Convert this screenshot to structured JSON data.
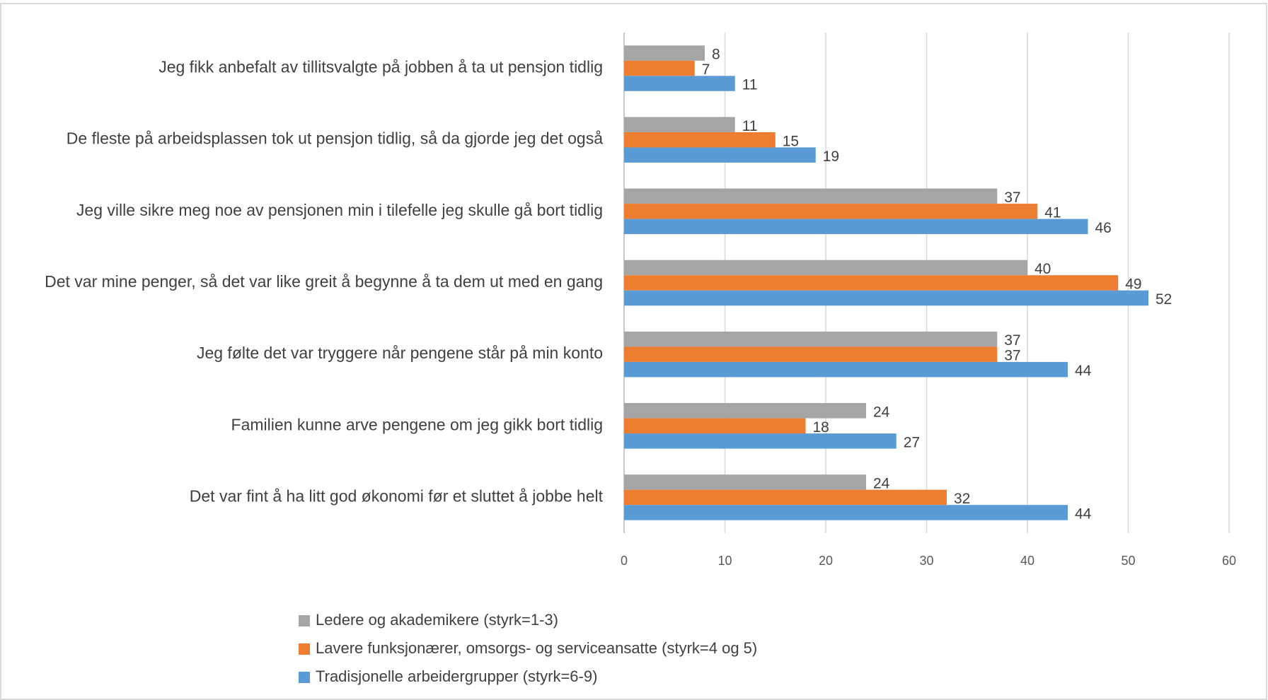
{
  "chart_data": {
    "type": "bar",
    "orientation": "horizontal",
    "categories": [
      "Jeg fikk anbefalt av tillitsvalgte på jobben å ta ut pensjon tidlig",
      "De fleste på arbeidsplassen tok ut pensjon tidlig, så da gjorde jeg det også",
      "Jeg ville sikre meg noe av pensjonen min i tilefelle jeg skulle gå bort tidlig",
      "Det var mine penger, så det var like greit å begynne å ta dem ut med en gang",
      "Jeg følte det var tryggere når pengene står på min konto",
      "Familien kunne arve pengene om jeg gikk bort tidlig",
      "Det var fint å ha litt god økonomi før et sluttet å jobbe helt"
    ],
    "series": [
      {
        "name": "Ledere og akademikere (styrk=1-3)",
        "color": "#a5a5a5",
        "values": [
          8,
          11,
          37,
          40,
          37,
          24,
          24
        ]
      },
      {
        "name": "Lavere funksjonærer, omsorgs- og serviceansatte (styrk=4 og 5)",
        "color": "#ed7d31",
        "values": [
          7,
          15,
          41,
          49,
          37,
          18,
          32
        ]
      },
      {
        "name": "Tradisjonelle arbeidergrupper (styrk=6-9)",
        "color": "#5b9bd5",
        "values": [
          11,
          19,
          46,
          52,
          44,
          27,
          44
        ]
      }
    ],
    "xlim": [
      0,
      60
    ],
    "xticks": [
      0,
      10,
      20,
      30,
      40,
      50,
      60
    ],
    "grid": true,
    "legend": "bottom"
  }
}
